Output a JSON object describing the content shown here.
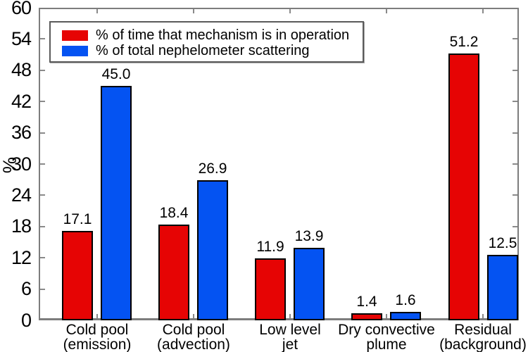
{
  "chart_data": {
    "type": "bar",
    "title": "",
    "xlabel": "",
    "ylabel": "%",
    "ylim": [
      0,
      60
    ],
    "ytick_interval": 6,
    "yticks": [
      0,
      6,
      12,
      18,
      24,
      30,
      36,
      42,
      48,
      54,
      60
    ],
    "grid": false,
    "legend_position": "top-left",
    "categories": [
      {
        "lines": [
          "Cold pool",
          "(emission)"
        ]
      },
      {
        "lines": [
          "Cold pool",
          "(advection)"
        ]
      },
      {
        "lines": [
          "Low level",
          "jet"
        ]
      },
      {
        "lines": [
          "Dry convective",
          "plume"
        ]
      },
      {
        "lines": [
          "Residual",
          "(background)"
        ]
      }
    ],
    "series": [
      {
        "name": "% of time that mechanism is in operation",
        "color": "#e60404",
        "values": [
          17.1,
          18.4,
          11.9,
          1.4,
          51.2
        ],
        "value_labels": [
          "17.1",
          "18.4",
          "11.9",
          "1.4",
          "51.2"
        ]
      },
      {
        "name": "% of total nephelometer scattering",
        "color": "#0453f2",
        "values": [
          45.0,
          26.9,
          13.9,
          1.6,
          12.5
        ],
        "value_labels": [
          "45.0",
          "26.9",
          "13.9",
          "1.6",
          "12.5"
        ]
      }
    ]
  },
  "colors": {
    "background": "#ffffff",
    "frame": "#7d7d7d",
    "tick": "#8a8a8a",
    "bar_border": "#000000",
    "text": "#000000",
    "legend_border": "#5a5a5a"
  }
}
